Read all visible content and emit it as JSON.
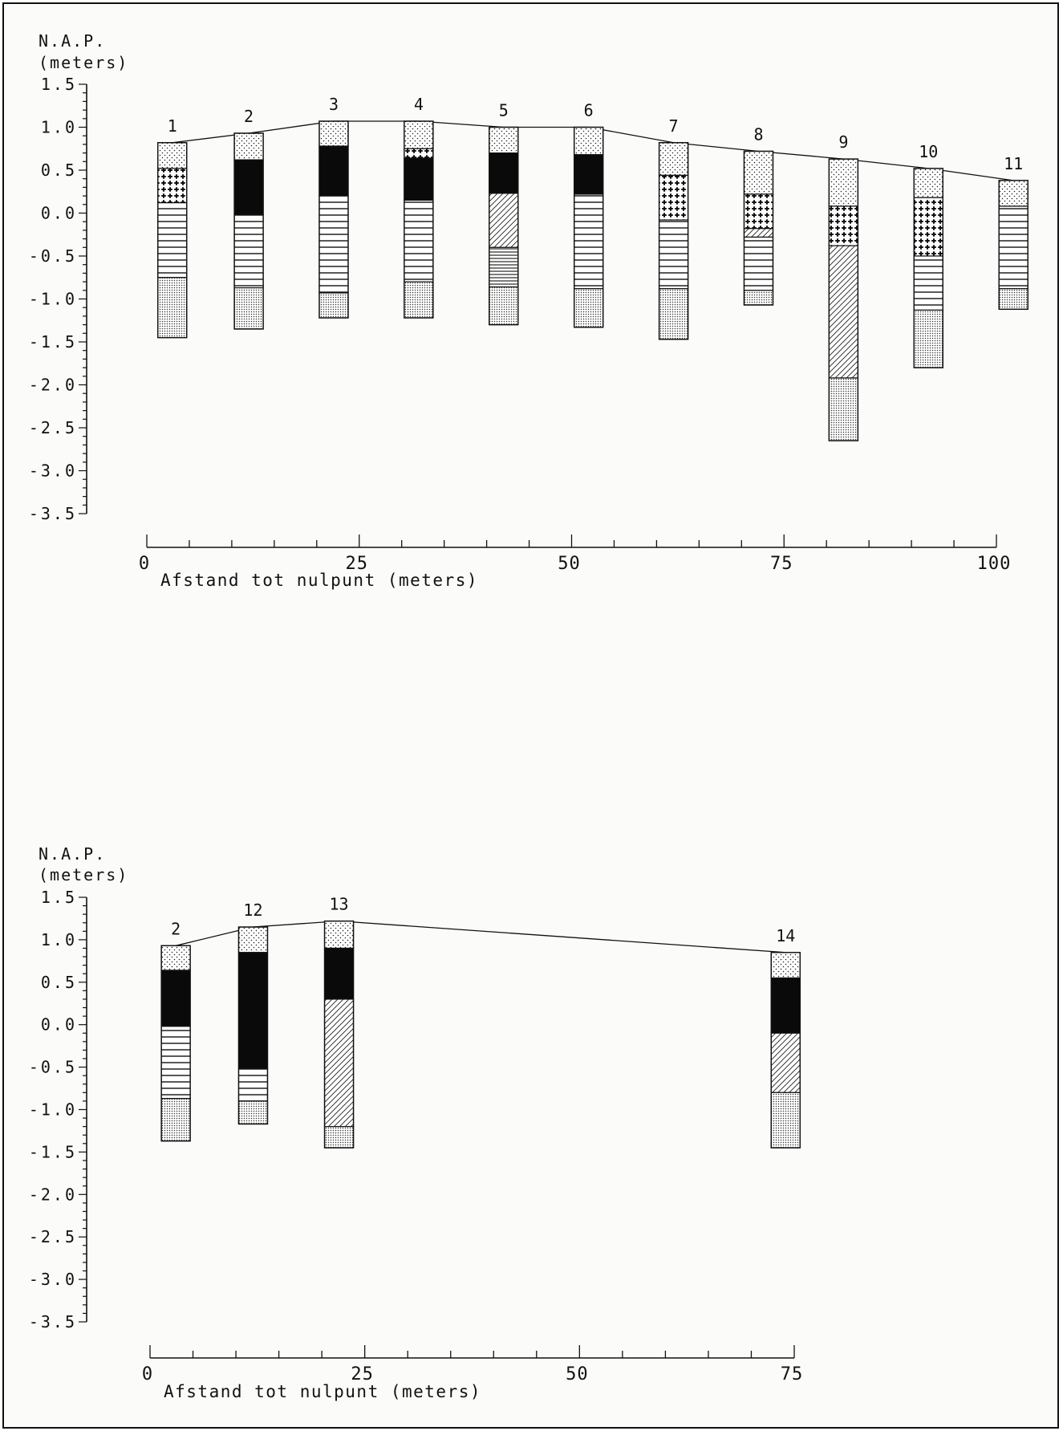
{
  "colors": {
    "ink": "#111111",
    "paper": "#fbfbf9",
    "peat": "#0a0a0a"
  },
  "legend_patterns": {
    "dots": "fine stipple",
    "dense_dots": "dense stipple",
    "cross": "cross / plus pattern",
    "hstripe": "horizontal lines",
    "dense_hstripe": "dense horizontal lines",
    "diag": "diagonal hatch",
    "black": "solid black"
  },
  "chart_data": [
    {
      "type": "profile",
      "ylabel_line1": "N.A.P.",
      "ylabel_line2": "(meters)",
      "xlabel": "Afstand tot nulpunt (meters)",
      "ylim": [
        -3.5,
        1.5
      ],
      "xlim": [
        0,
        100
      ],
      "yticks": [
        1.5,
        1.0,
        0.5,
        0.0,
        -0.5,
        -1.0,
        -1.5,
        -2.0,
        -2.5,
        -3.0,
        -3.5
      ],
      "ytick_labels": [
        "1.5",
        "1.0",
        "0.5",
        "0.0",
        "-0.5",
        "-1.0",
        "-1.5",
        "-2.0",
        "-2.5",
        "-3.0",
        "-3.5"
      ],
      "xticks": [
        0,
        25,
        50,
        75,
        100
      ],
      "xtick_labels": [
        "0",
        "25",
        "50",
        "75",
        "100"
      ],
      "xminor_step": 5,
      "boreholes": [
        {
          "label": "1",
          "x": 3,
          "top": 0.82,
          "layers": [
            {
              "from": 0.82,
              "to": 0.52,
              "pattern": "dots"
            },
            {
              "from": 0.52,
              "to": 0.12,
              "pattern": "cross"
            },
            {
              "from": 0.12,
              "to": -0.75,
              "pattern": "hstripe"
            },
            {
              "from": -0.75,
              "to": -1.45,
              "pattern": "dense_dots"
            }
          ]
        },
        {
          "label": "2",
          "x": 12,
          "top": 0.93,
          "layers": [
            {
              "from": 0.93,
              "to": 0.62,
              "pattern": "dots"
            },
            {
              "from": 0.62,
              "to": -0.02,
              "pattern": "black"
            },
            {
              "from": -0.02,
              "to": -0.87,
              "pattern": "hstripe"
            },
            {
              "from": -0.87,
              "to": -1.35,
              "pattern": "dense_dots"
            }
          ]
        },
        {
          "label": "3",
          "x": 22,
          "top": 1.07,
          "layers": [
            {
              "from": 1.07,
              "to": 0.78,
              "pattern": "dots"
            },
            {
              "from": 0.78,
              "to": 0.2,
              "pattern": "black"
            },
            {
              "from": 0.2,
              "to": -0.93,
              "pattern": "hstripe"
            },
            {
              "from": -0.93,
              "to": -1.22,
              "pattern": "dense_dots"
            }
          ]
        },
        {
          "label": "4",
          "x": 32,
          "top": 1.07,
          "layers": [
            {
              "from": 1.07,
              "to": 0.75,
              "pattern": "dots"
            },
            {
              "from": 0.75,
              "to": 0.64,
              "pattern": "cross"
            },
            {
              "from": 0.64,
              "to": 0.15,
              "pattern": "black"
            },
            {
              "from": 0.15,
              "to": -0.8,
              "pattern": "hstripe"
            },
            {
              "from": -0.8,
              "to": -1.22,
              "pattern": "dense_dots"
            }
          ]
        },
        {
          "label": "5",
          "x": 42,
          "top": 1.0,
          "layers": [
            {
              "from": 1.0,
              "to": 0.7,
              "pattern": "dots"
            },
            {
              "from": 0.7,
              "to": 0.23,
              "pattern": "black"
            },
            {
              "from": 0.23,
              "to": -0.4,
              "pattern": "diag"
            },
            {
              "from": -0.4,
              "to": -0.86,
              "pattern": "dense_hstripe"
            },
            {
              "from": -0.86,
              "to": -1.3,
              "pattern": "dense_dots"
            }
          ]
        },
        {
          "label": "6",
          "x": 52,
          "top": 1.0,
          "layers": [
            {
              "from": 1.0,
              "to": 0.68,
              "pattern": "dots"
            },
            {
              "from": 0.68,
              "to": 0.22,
              "pattern": "black"
            },
            {
              "from": 0.22,
              "to": -0.88,
              "pattern": "hstripe"
            },
            {
              "from": -0.88,
              "to": -1.33,
              "pattern": "dense_dots"
            }
          ]
        },
        {
          "label": "7",
          "x": 62,
          "top": 0.82,
          "layers": [
            {
              "from": 0.82,
              "to": 0.44,
              "pattern": "dots"
            },
            {
              "from": 0.44,
              "to": -0.08,
              "pattern": "cross"
            },
            {
              "from": -0.08,
              "to": -0.88,
              "pattern": "hstripe"
            },
            {
              "from": -0.88,
              "to": -1.47,
              "pattern": "dense_dots"
            }
          ]
        },
        {
          "label": "8",
          "x": 72,
          "top": 0.72,
          "layers": [
            {
              "from": 0.72,
              "to": 0.22,
              "pattern": "dots"
            },
            {
              "from": 0.22,
              "to": -0.18,
              "pattern": "cross"
            },
            {
              "from": -0.18,
              "to": -0.28,
              "pattern": "diag"
            },
            {
              "from": -0.28,
              "to": -0.9,
              "pattern": "hstripe"
            },
            {
              "from": -0.9,
              "to": -1.07,
              "pattern": "dense_dots"
            }
          ]
        },
        {
          "label": "9",
          "x": 82,
          "top": 0.63,
          "layers": [
            {
              "from": 0.63,
              "to": 0.08,
              "pattern": "dots"
            },
            {
              "from": 0.08,
              "to": -0.38,
              "pattern": "cross"
            },
            {
              "from": -0.38,
              "to": -1.92,
              "pattern": "diag"
            },
            {
              "from": -1.92,
              "to": -2.65,
              "pattern": "dense_dots"
            }
          ]
        },
        {
          "label": "10",
          "x": 92,
          "top": 0.52,
          "layers": [
            {
              "from": 0.52,
              "to": 0.18,
              "pattern": "dots"
            },
            {
              "from": 0.18,
              "to": -0.5,
              "pattern": "cross"
            },
            {
              "from": -0.5,
              "to": -1.13,
              "pattern": "hstripe"
            },
            {
              "from": -1.13,
              "to": -1.8,
              "pattern": "dense_dots"
            }
          ]
        },
        {
          "label": "11",
          "x": 102,
          "top": 0.38,
          "layers": [
            {
              "from": 0.38,
              "to": 0.08,
              "pattern": "dots"
            },
            {
              "from": 0.08,
              "to": -0.88,
              "pattern": "hstripe"
            },
            {
              "from": -0.88,
              "to": -1.12,
              "pattern": "dense_dots"
            }
          ]
        }
      ]
    },
    {
      "type": "profile",
      "ylabel_line1": "N.A.P.",
      "ylabel_line2": "(meters)",
      "xlabel": "Afstand tot nulpunt (meters)",
      "ylim": [
        -3.5,
        1.5
      ],
      "xlim": [
        0,
        75
      ],
      "yticks": [
        1.5,
        1.0,
        0.5,
        0.0,
        -0.5,
        -1.0,
        -1.5,
        -2.0,
        -2.5,
        -3.0,
        -3.5
      ],
      "ytick_labels": [
        "1.5",
        "1.0",
        "0.5",
        "0.0",
        "-0.5",
        "-1.0",
        "-1.5",
        "-2.0",
        "-2.5",
        "-3.0",
        "-3.5"
      ],
      "xticks": [
        0,
        25,
        50,
        75
      ],
      "xtick_labels": [
        "0",
        "25",
        "50",
        "75"
      ],
      "xminor_step": 5,
      "boreholes": [
        {
          "label": "2",
          "x": 3,
          "top": 0.93,
          "layers": [
            {
              "from": 0.93,
              "to": 0.64,
              "pattern": "dots"
            },
            {
              "from": 0.64,
              "to": -0.02,
              "pattern": "black"
            },
            {
              "from": -0.02,
              "to": -0.87,
              "pattern": "hstripe"
            },
            {
              "from": -0.87,
              "to": -1.37,
              "pattern": "dense_dots"
            }
          ]
        },
        {
          "label": "12",
          "x": 12,
          "top": 1.15,
          "layers": [
            {
              "from": 1.15,
              "to": 0.85,
              "pattern": "dots"
            },
            {
              "from": 0.85,
              "to": -0.52,
              "pattern": "black"
            },
            {
              "from": -0.52,
              "to": -0.9,
              "pattern": "hstripe"
            },
            {
              "from": -0.9,
              "to": -1.17,
              "pattern": "dense_dots"
            }
          ]
        },
        {
          "label": "13",
          "x": 22,
          "top": 1.22,
          "layers": [
            {
              "from": 1.22,
              "to": 0.9,
              "pattern": "dots"
            },
            {
              "from": 0.9,
              "to": 0.3,
              "pattern": "black"
            },
            {
              "from": 0.3,
              "to": -1.2,
              "pattern": "diag"
            },
            {
              "from": -1.2,
              "to": -1.45,
              "pattern": "dense_dots"
            }
          ]
        },
        {
          "label": "14",
          "x": 74,
          "top": 0.85,
          "layers": [
            {
              "from": 0.85,
              "to": 0.55,
              "pattern": "dots"
            },
            {
              "from": 0.55,
              "to": -0.1,
              "pattern": "black"
            },
            {
              "from": -0.1,
              "to": -0.8,
              "pattern": "diag"
            },
            {
              "from": -0.8,
              "to": -1.45,
              "pattern": "dense_dots"
            }
          ]
        }
      ]
    }
  ]
}
